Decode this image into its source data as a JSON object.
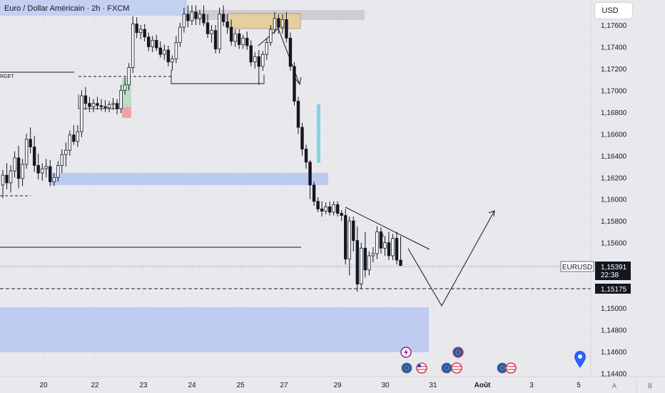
{
  "header": {
    "title": "Euro / Dollar Américain · 2h · FXCM",
    "currency_button": "USD"
  },
  "annotations": {
    "target_label": "RGET"
  },
  "footer": {
    "left_button": "A",
    "right_button": "B"
  },
  "colors": {
    "background": "#e9e9ed",
    "candle": "#131722",
    "zone_blue": "#b7c6f0",
    "zone_tan": "#e4cf9e",
    "zone_grey": "#c9c9cd",
    "zone_green": "#bcdcc8",
    "zone_red": "#f0a0a8",
    "cyan_bar": "#7fd3e8"
  },
  "icons": [
    "lightning-event-icon",
    "eu-flag-event-icon",
    "us-flag-event-icon",
    "location-pin-icon"
  ],
  "chart_data": {
    "type": "candlestick",
    "symbol": "EURUSD",
    "y_ticks": [
      "1,17600",
      "1,17400",
      "1,17200",
      "1,17000",
      "1,16800",
      "1,16600",
      "1,16400",
      "1,16200",
      "1,16000",
      "1,15800",
      "1,15600",
      "1,15400",
      "1,15000",
      "1,14800",
      "1,14600",
      "1,14400"
    ],
    "x_ticks": [
      {
        "label": "20",
        "day": 20
      },
      {
        "label": "22",
        "day": 22
      },
      {
        "label": "23",
        "day": 23
      },
      {
        "label": "24",
        "day": 24
      },
      {
        "label": "25",
        "day": 25
      },
      {
        "label": "27",
        "day": 27
      },
      {
        "label": "29",
        "day": 29
      },
      {
        "label": "30",
        "day": 30
      },
      {
        "label": "31",
        "day": 31
      },
      {
        "label": "Août",
        "day": 32
      },
      {
        "label": "3",
        "day": 33
      },
      {
        "label": "5",
        "day": 35
      }
    ],
    "ylim": [
      1.1437,
      1.1783
    ],
    "current_price": {
      "label": "EURUSD",
      "value": "1,15391",
      "countdown": "22:38"
    },
    "level_price": {
      "value": "1,15175"
    },
    "candles": [
      [
        1.1613,
        1.1627,
        1.1601,
        1.1622
      ],
      [
        1.1622,
        1.1633,
        1.1609,
        1.1615
      ],
      [
        1.1615,
        1.1631,
        1.1606,
        1.1626
      ],
      [
        1.1626,
        1.1644,
        1.162,
        1.1638
      ],
      [
        1.1638,
        1.1649,
        1.161,
        1.1619
      ],
      [
        1.1619,
        1.1637,
        1.1612,
        1.1632
      ],
      [
        1.1632,
        1.166,
        1.1628,
        1.1655
      ],
      [
        1.1655,
        1.1666,
        1.1642,
        1.1648
      ],
      [
        1.1648,
        1.1658,
        1.1625,
        1.1631
      ],
      [
        1.1631,
        1.1642,
        1.1618,
        1.1624
      ],
      [
        1.1624,
        1.1633,
        1.1617,
        1.1628
      ],
      [
        1.1628,
        1.1637,
        1.162,
        1.163
      ],
      [
        1.163,
        1.1636,
        1.1612,
        1.1616
      ],
      [
        1.1616,
        1.1624,
        1.1612,
        1.162
      ],
      [
        1.162,
        1.1635,
        1.1616,
        1.1631
      ],
      [
        1.1631,
        1.1646,
        1.1624,
        1.1641
      ],
      [
        1.1641,
        1.1652,
        1.163,
        1.1645
      ],
      [
        1.1645,
        1.1663,
        1.164,
        1.1659
      ],
      [
        1.1659,
        1.1668,
        1.165,
        1.1653
      ],
      [
        1.1653,
        1.1668,
        1.1648,
        1.1662
      ],
      [
        1.1662,
        1.17,
        1.1657,
        1.1695
      ],
      [
        1.1695,
        1.1703,
        1.1682,
        1.1688
      ],
      [
        1.1688,
        1.1694,
        1.168,
        1.1685
      ],
      [
        1.1685,
        1.1692,
        1.168,
        1.1688
      ],
      [
        1.1688,
        1.1694,
        1.1682,
        1.1686
      ],
      [
        1.1686,
        1.1692,
        1.1681,
        1.1685
      ],
      [
        1.1685,
        1.1691,
        1.168,
        1.1684
      ],
      [
        1.1684,
        1.169,
        1.168,
        1.1687
      ],
      [
        1.1687,
        1.1693,
        1.1682,
        1.1688
      ],
      [
        1.1688,
        1.1692,
        1.1678,
        1.1683
      ],
      [
        1.1683,
        1.1705,
        1.1679,
        1.17
      ],
      [
        1.17,
        1.1712,
        1.1696,
        1.1705
      ],
      [
        1.1705,
        1.1725,
        1.17,
        1.1721
      ],
      [
        1.1721,
        1.1768,
        1.1716,
        1.1761
      ],
      [
        1.1761,
        1.1767,
        1.1748,
        1.1753
      ],
      [
        1.1753,
        1.176,
        1.1747,
        1.1756
      ],
      [
        1.1756,
        1.1761,
        1.1745,
        1.1749
      ],
      [
        1.1749,
        1.1753,
        1.1736,
        1.174
      ],
      [
        1.174,
        1.175,
        1.1735,
        1.1746
      ],
      [
        1.1746,
        1.1751,
        1.1736,
        1.1739
      ],
      [
        1.1739,
        1.1745,
        1.173,
        1.1733
      ],
      [
        1.1733,
        1.1742,
        1.1728,
        1.1737
      ],
      [
        1.1737,
        1.1741,
        1.1722,
        1.1726
      ],
      [
        1.1726,
        1.1732,
        1.1718,
        1.1729
      ],
      [
        1.1729,
        1.175,
        1.1725,
        1.1744
      ],
      [
        1.1744,
        1.1762,
        1.174,
        1.1758
      ],
      [
        1.1758,
        1.1776,
        1.1753,
        1.177
      ],
      [
        1.177,
        1.1778,
        1.1758,
        1.1764
      ],
      [
        1.1764,
        1.1778,
        1.176,
        1.1772
      ],
      [
        1.1772,
        1.1778,
        1.176,
        1.1766
      ],
      [
        1.1766,
        1.1774,
        1.176,
        1.177
      ],
      [
        1.177,
        1.1778,
        1.1759,
        1.1762
      ],
      [
        1.1762,
        1.177,
        1.1748,
        1.1752
      ],
      [
        1.1752,
        1.176,
        1.1744,
        1.1755
      ],
      [
        1.1755,
        1.176,
        1.1734,
        1.1738
      ],
      [
        1.1738,
        1.1776,
        1.1734,
        1.177
      ],
      [
        1.177,
        1.1778,
        1.1759,
        1.1763
      ],
      [
        1.1763,
        1.177,
        1.1752,
        1.1758
      ],
      [
        1.1758,
        1.1765,
        1.1741,
        1.1745
      ],
      [
        1.1745,
        1.1756,
        1.174,
        1.1752
      ],
      [
        1.1752,
        1.1756,
        1.1738,
        1.1742
      ],
      [
        1.1742,
        1.1751,
        1.1738,
        1.1748
      ],
      [
        1.1748,
        1.1754,
        1.1737,
        1.1741
      ],
      [
        1.1741,
        1.1746,
        1.1722,
        1.1726
      ],
      [
        1.1726,
        1.1735,
        1.172,
        1.1731
      ],
      [
        1.1731,
        1.1737,
        1.1705,
        1.1722
      ],
      [
        1.1722,
        1.1736,
        1.1718,
        1.1733
      ],
      [
        1.1733,
        1.1748,
        1.1728,
        1.1744
      ],
      [
        1.1744,
        1.176,
        1.1741,
        1.1756
      ],
      [
        1.1756,
        1.1772,
        1.1752,
        1.1766
      ],
      [
        1.1766,
        1.177,
        1.1752,
        1.1758
      ],
      [
        1.1758,
        1.177,
        1.1752,
        1.1765
      ],
      [
        1.1765,
        1.1772,
        1.1744,
        1.1748
      ],
      [
        1.1748,
        1.1753,
        1.1718,
        1.1722
      ],
      [
        1.1722,
        1.1726,
        1.1686,
        1.169
      ],
      [
        1.169,
        1.1694,
        1.166,
        1.1666
      ],
      [
        1.1666,
        1.167,
        1.164,
        1.1646
      ],
      [
        1.1646,
        1.165,
        1.1628,
        1.1634
      ],
      [
        1.1634,
        1.1636,
        1.16,
        1.1613
      ],
      [
        1.1613,
        1.1616,
        1.1594,
        1.1598
      ],
      [
        1.1598,
        1.1602,
        1.1588,
        1.1591
      ],
      [
        1.1591,
        1.1598,
        1.1584,
        1.1589
      ],
      [
        1.1589,
        1.1597,
        1.1586,
        1.1593
      ],
      [
        1.1593,
        1.1598,
        1.1585,
        1.1588
      ],
      [
        1.1588,
        1.1598,
        1.1585,
        1.1595
      ],
      [
        1.1595,
        1.1598,
        1.1584,
        1.1587
      ],
      [
        1.1587,
        1.159,
        1.158,
        1.1585
      ],
      [
        1.1585,
        1.1591,
        1.154,
        1.1545
      ],
      [
        1.1545,
        1.1584,
        1.153,
        1.158
      ],
      [
        1.158,
        1.1584,
        1.1552,
        1.1562
      ],
      [
        1.1562,
        1.1575,
        1.1515,
        1.1522
      ],
      [
        1.1522,
        1.156,
        1.1518,
        1.1555
      ],
      [
        1.1555,
        1.157,
        1.1528,
        1.1535
      ],
      [
        1.1535,
        1.1552,
        1.153,
        1.1548
      ],
      [
        1.1548,
        1.1556,
        1.1542,
        1.155
      ],
      [
        1.155,
        1.1575,
        1.1545,
        1.157
      ],
      [
        1.157,
        1.1574,
        1.155,
        1.1555
      ],
      [
        1.1555,
        1.1566,
        1.1548,
        1.156
      ],
      [
        1.156,
        1.157,
        1.1544,
        1.1548
      ],
      [
        1.1548,
        1.1568,
        1.1544,
        1.1564
      ],
      [
        1.1564,
        1.157,
        1.154,
        1.1544
      ],
      [
        1.1544,
        1.1566,
        1.1539,
        1.1539
      ]
    ]
  }
}
